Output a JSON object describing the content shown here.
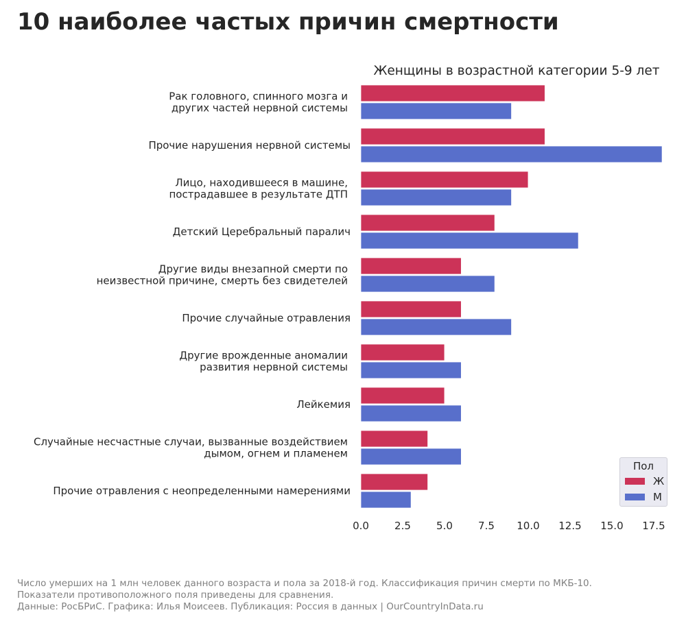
{
  "title": "10 наиболее частых причин смертности",
  "colors": {
    "female": "#cc3358",
    "male": "#586fcb"
  },
  "chart_data": {
    "type": "bar",
    "orientation": "horizontal",
    "title": "Женщины в возрастной категории 5-9 лет",
    "categories": [
      [
        "Рак головного, спинного мозга и",
        "других частей нервной системы"
      ],
      [
        "Прочие нарушения нервной системы"
      ],
      [
        "Лицо, находившееся в машине,",
        "пострадавшее в результате ДТП"
      ],
      [
        "Детский Церебральный паралич"
      ],
      [
        "Другие виды внезапной смерти по",
        "неизвестной причине, смерть без свидетелей"
      ],
      [
        "Прочие случайные отравления"
      ],
      [
        "Другие врожденные аномалии",
        "развития нервной системы"
      ],
      [
        "Лейкемия"
      ],
      [
        "Случайные несчастные случаи, вызванные воздействием",
        "дымом, огнем и пламенем"
      ],
      [
        "Прочие отравления с неопределенными намерениями"
      ]
    ],
    "series": [
      {
        "name": "Ж",
        "values": [
          11,
          11,
          10,
          8,
          6,
          6,
          5,
          5,
          4,
          4
        ]
      },
      {
        "name": "М",
        "values": [
          9,
          18,
          9,
          13,
          8,
          9,
          6,
          6,
          6,
          3
        ]
      }
    ],
    "xticks": [
      "0.0",
      "2.5",
      "5.0",
      "7.5",
      "10.0",
      "12.5",
      "15.0",
      "17.5"
    ],
    "xlim": [
      0,
      18.2
    ],
    "xlabel": "",
    "ylabel": "",
    "grid": false,
    "legend": {
      "title": "Пол",
      "position": "bottom-right"
    }
  },
  "footer": {
    "line1": "Число умерших на 1 млн человек данного возраста и пола за 2018-й год. Классификация причин смерти по МКБ-10.",
    "line2": "Показатели противоположного поля приведены для сравнения.",
    "line3": "Данные: РосБРиС. Графика: Илья Моисеев. Публикация: Россия в данных | OurCountryInData.ru"
  }
}
